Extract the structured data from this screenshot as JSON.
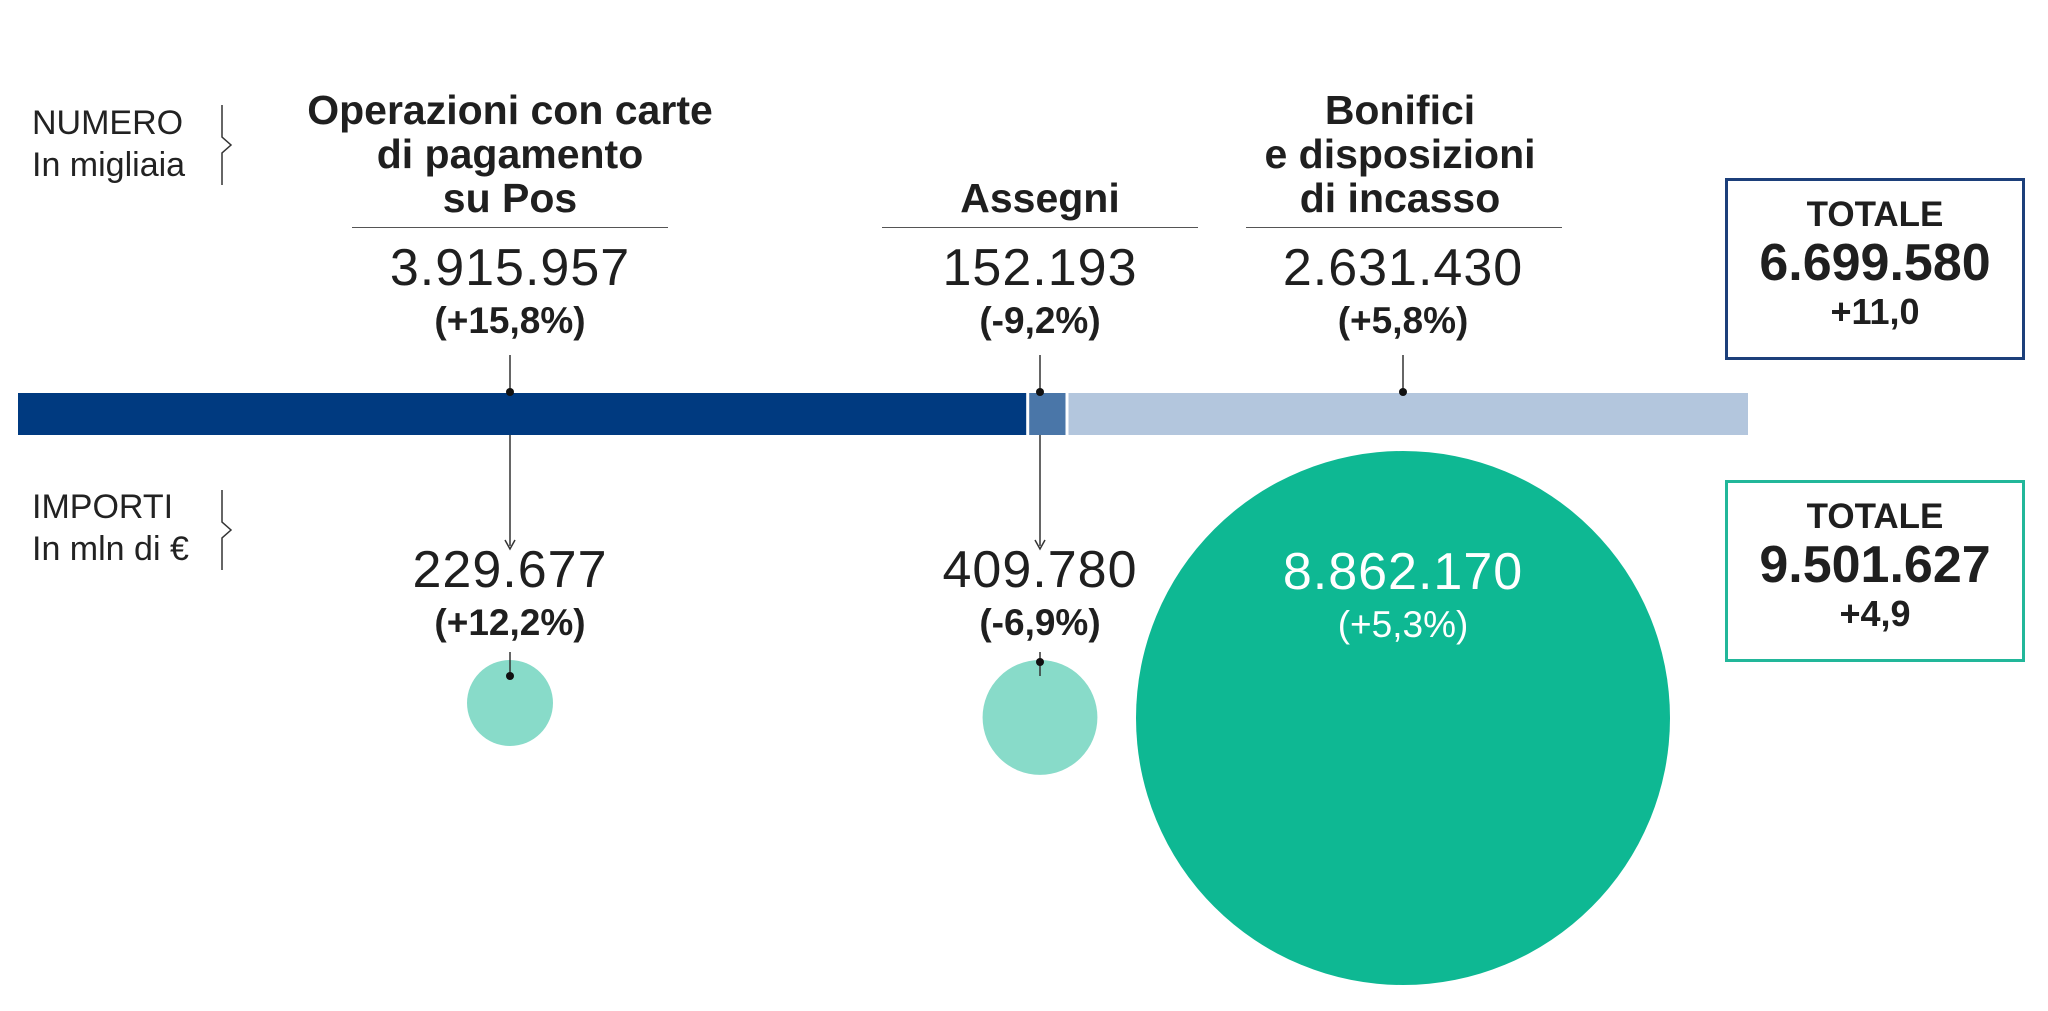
{
  "colors": {
    "navy": "#003a80",
    "mid_blue": "#4a76a8",
    "light_blue": "#b3c6dd",
    "teal": "#0eb893",
    "light_teal": "#88dbc9",
    "text": "#1f1f1f"
  },
  "labels": {
    "numero": "NUMERO",
    "numero_unit": "In migliaia",
    "importi": "IMPORTI",
    "importi_unit": "In mln di €"
  },
  "categories": [
    {
      "title": [
        "Operazioni con carte",
        "di pagamento",
        "su Pos"
      ],
      "numero": "3.915.957",
      "numero_var": "(+15,8%)",
      "importo": "229.677",
      "importo_var": "(+12,2%)"
    },
    {
      "title": [
        "Assegni"
      ],
      "numero": "152.193",
      "numero_var": "(-9,2%)",
      "importo": "409.780",
      "importo_var": "(-6,9%)"
    },
    {
      "title": [
        "Bonifici",
        "e disposizioni",
        "di incasso"
      ],
      "numero": "2.631.430",
      "numero_var": "(+5,8%)",
      "importo": "8.862.170",
      "importo_var": "(+5,3%)"
    }
  ],
  "totale_numero": {
    "label": "TOTALE",
    "value": "6.699.580",
    "var": "+11,0"
  },
  "totale_importi": {
    "label": "TOTALE",
    "value": "9.501.627",
    "var": "+4,9"
  },
  "chart_data": {
    "type": "bar",
    "categories": [
      "Operazioni con carte di pagamento su Pos",
      "Assegni",
      "Bonifici e disposizioni di incasso"
    ],
    "series": [
      {
        "name": "NUMERO",
        "values": [
          3915957,
          152193,
          2631430
        ]
      },
      {
        "name": "IMPORTI",
        "values": [
          229677,
          409780,
          8862170
        ]
      }
    ],
    "numero_variation_pct": [
      15.8,
      -9.2,
      5.8
    ],
    "importi_variation_pct": [
      12.2,
      -6.9,
      5.3
    ],
    "totals": {
      "numero": 6699580,
      "numero_variation": 11.0,
      "importi": 9501627,
      "importi_variation": 4.9
    },
    "stacked": true
  }
}
